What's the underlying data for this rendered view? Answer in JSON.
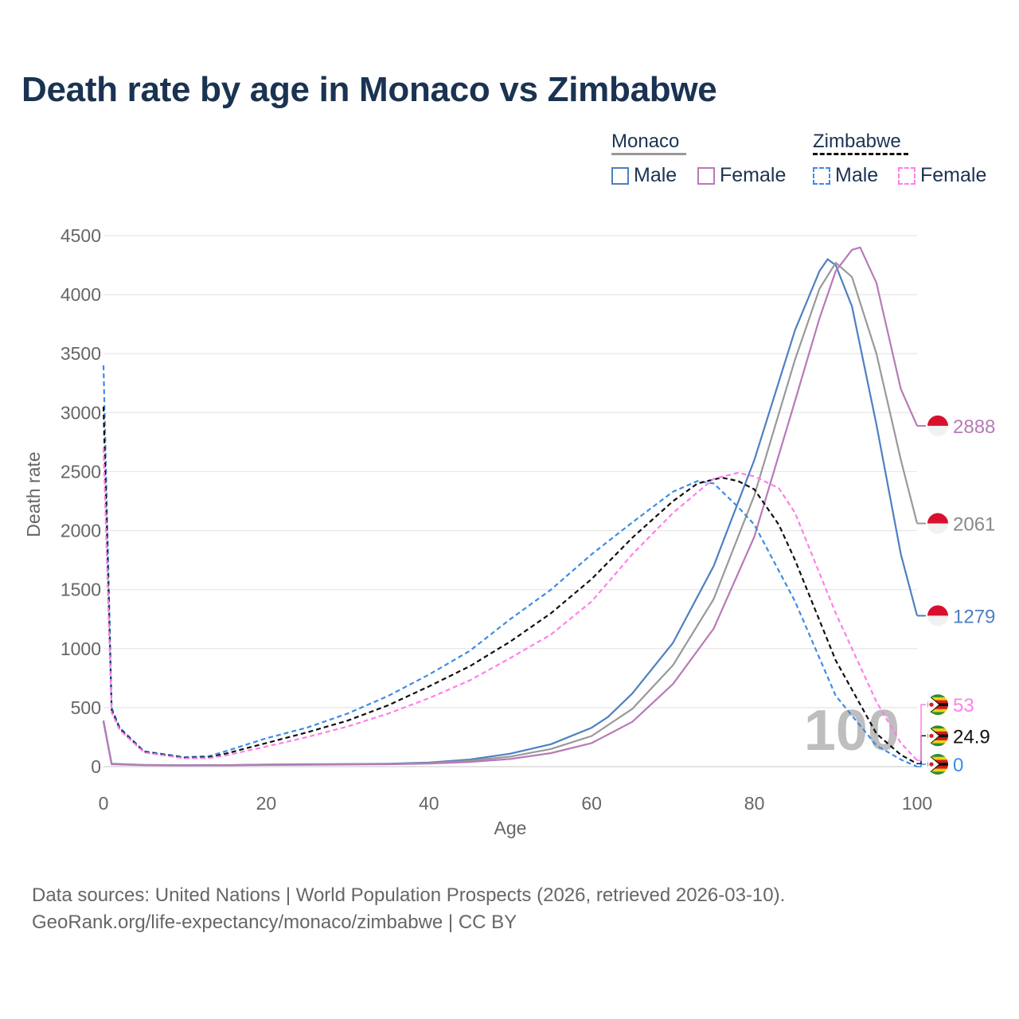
{
  "title": "Death rate by age in Monaco vs Zimbabwe",
  "legend": {
    "groups": [
      {
        "name": "Monaco",
        "line_color": "#999999",
        "line_style": "solid",
        "items": [
          {
            "label": "Male",
            "color": "#4e7fc2",
            "style": "solid"
          },
          {
            "label": "Female",
            "color": "#b77ab8",
            "style": "solid"
          }
        ]
      },
      {
        "name": "Zimbabwe",
        "line_color": "#111111",
        "line_style": "dashed",
        "items": [
          {
            "label": "Male",
            "color": "#3d8ce6",
            "style": "dashed"
          },
          {
            "label": "Female",
            "color": "#ff7fe9",
            "style": "dashed"
          }
        ]
      }
    ]
  },
  "watermark": "100",
  "footer": {
    "line1": "Data sources: United Nations | World Population Prospects (2026, retrieved 2026-03-10).",
    "line2": "GeoRank.org/life-expectancy/monaco/zimbabwe | CC BY"
  },
  "chart_data": {
    "type": "line",
    "title": "Death rate by age in Monaco vs Zimbabwe",
    "xlabel": "Age",
    "ylabel": "Death rate",
    "xlim": [
      0,
      100
    ],
    "ylim": [
      0,
      4500
    ],
    "xticks": [
      0,
      20,
      40,
      60,
      80,
      100
    ],
    "yticks": [
      0,
      500,
      1000,
      1500,
      2000,
      2500,
      3000,
      3500,
      4000,
      4500
    ],
    "grid": true,
    "series": [
      {
        "name": "Monaco Male",
        "color": "#4e7fc2",
        "dash": "solid",
        "end_label": "1279",
        "end_value": 1279,
        "flag": "monaco",
        "points": [
          [
            0,
            390
          ],
          [
            1,
            25
          ],
          [
            5,
            15
          ],
          [
            10,
            12
          ],
          [
            15,
            13
          ],
          [
            20,
            18
          ],
          [
            25,
            20
          ],
          [
            30,
            22
          ],
          [
            35,
            25
          ],
          [
            40,
            35
          ],
          [
            45,
            60
          ],
          [
            50,
            110
          ],
          [
            55,
            190
          ],
          [
            60,
            330
          ],
          [
            62,
            420
          ],
          [
            65,
            620
          ],
          [
            70,
            1050
          ],
          [
            75,
            1700
          ],
          [
            80,
            2600
          ],
          [
            85,
            3700
          ],
          [
            88,
            4200
          ],
          [
            89,
            4300
          ],
          [
            90,
            4250
          ],
          [
            92,
            3900
          ],
          [
            95,
            2900
          ],
          [
            98,
            1800
          ],
          [
            100,
            1279
          ]
        ]
      },
      {
        "name": "Monaco Both",
        "color": "#999999",
        "dash": "solid",
        "end_label": "2061",
        "end_value": 2061,
        "flag": "monaco",
        "points": [
          [
            0,
            385
          ],
          [
            1,
            22
          ],
          [
            5,
            14
          ],
          [
            10,
            11
          ],
          [
            15,
            12
          ],
          [
            20,
            16
          ],
          [
            25,
            18
          ],
          [
            30,
            20
          ],
          [
            35,
            22
          ],
          [
            40,
            30
          ],
          [
            45,
            50
          ],
          [
            50,
            85
          ],
          [
            55,
            150
          ],
          [
            60,
            260
          ],
          [
            65,
            490
          ],
          [
            70,
            860
          ],
          [
            75,
            1420
          ],
          [
            80,
            2300
          ],
          [
            85,
            3450
          ],
          [
            88,
            4050
          ],
          [
            90,
            4270
          ],
          [
            92,
            4150
          ],
          [
            95,
            3500
          ],
          [
            98,
            2600
          ],
          [
            100,
            2061
          ]
        ]
      },
      {
        "name": "Monaco Female",
        "color": "#b77ab8",
        "dash": "solid",
        "end_label": "2888",
        "end_value": 2888,
        "flag": "monaco",
        "points": [
          [
            0,
            380
          ],
          [
            1,
            20
          ],
          [
            5,
            13
          ],
          [
            10,
            10
          ],
          [
            15,
            11
          ],
          [
            20,
            14
          ],
          [
            25,
            16
          ],
          [
            30,
            18
          ],
          [
            35,
            20
          ],
          [
            40,
            26
          ],
          [
            45,
            40
          ],
          [
            50,
            65
          ],
          [
            55,
            115
          ],
          [
            60,
            200
          ],
          [
            65,
            380
          ],
          [
            70,
            700
          ],
          [
            75,
            1170
          ],
          [
            80,
            1950
          ],
          [
            85,
            3100
          ],
          [
            88,
            3800
          ],
          [
            90,
            4200
          ],
          [
            92,
            4380
          ],
          [
            93,
            4400
          ],
          [
            95,
            4100
          ],
          [
            98,
            3200
          ],
          [
            100,
            2888
          ]
        ]
      },
      {
        "name": "Zimbabwe Male",
        "color": "#3d8ce6",
        "dash": "dashed",
        "end_label": "0",
        "end_value": 0,
        "flag": "zimbabwe",
        "points": [
          [
            0,
            3400
          ],
          [
            1,
            500
          ],
          [
            2,
            330
          ],
          [
            5,
            130
          ],
          [
            10,
            80
          ],
          [
            13,
            90
          ],
          [
            15,
            130
          ],
          [
            20,
            240
          ],
          [
            25,
            330
          ],
          [
            30,
            450
          ],
          [
            35,
            600
          ],
          [
            40,
            780
          ],
          [
            45,
            980
          ],
          [
            50,
            1250
          ],
          [
            55,
            1500
          ],
          [
            60,
            1800
          ],
          [
            65,
            2070
          ],
          [
            70,
            2330
          ],
          [
            73,
            2420
          ],
          [
            75,
            2400
          ],
          [
            78,
            2200
          ],
          [
            80,
            2050
          ],
          [
            85,
            1400
          ],
          [
            90,
            600
          ],
          [
            95,
            180
          ],
          [
            98,
            60
          ],
          [
            100,
            0
          ]
        ]
      },
      {
        "name": "Zimbabwe Both",
        "color": "#111111",
        "dash": "dashed",
        "end_label": "24.9",
        "end_value": 24.9,
        "flag": "zimbabwe",
        "points": [
          [
            0,
            3050
          ],
          [
            1,
            480
          ],
          [
            2,
            320
          ],
          [
            5,
            125
          ],
          [
            10,
            75
          ],
          [
            13,
            80
          ],
          [
            15,
            110
          ],
          [
            20,
            200
          ],
          [
            25,
            290
          ],
          [
            30,
            390
          ],
          [
            35,
            520
          ],
          [
            40,
            680
          ],
          [
            45,
            850
          ],
          [
            50,
            1060
          ],
          [
            55,
            1300
          ],
          [
            60,
            1590
          ],
          [
            65,
            1940
          ],
          [
            70,
            2250
          ],
          [
            73,
            2400
          ],
          [
            76,
            2450
          ],
          [
            78,
            2420
          ],
          [
            80,
            2350
          ],
          [
            83,
            2050
          ],
          [
            85,
            1750
          ],
          [
            90,
            900
          ],
          [
            95,
            280
          ],
          [
            98,
            100
          ],
          [
            100,
            25
          ]
        ]
      },
      {
        "name": "Zimbabwe Female",
        "color": "#ff7fe9",
        "dash": "dashed",
        "end_label": "53",
        "end_value": 53,
        "flag": "zimbabwe",
        "points": [
          [
            0,
            2700
          ],
          [
            1,
            460
          ],
          [
            2,
            310
          ],
          [
            5,
            120
          ],
          [
            10,
            70
          ],
          [
            13,
            72
          ],
          [
            15,
            95
          ],
          [
            20,
            170
          ],
          [
            25,
            250
          ],
          [
            30,
            340
          ],
          [
            35,
            450
          ],
          [
            40,
            580
          ],
          [
            45,
            730
          ],
          [
            50,
            920
          ],
          [
            55,
            1120
          ],
          [
            60,
            1400
          ],
          [
            65,
            1800
          ],
          [
            70,
            2150
          ],
          [
            75,
            2440
          ],
          [
            78,
            2490
          ],
          [
            80,
            2460
          ],
          [
            83,
            2360
          ],
          [
            85,
            2150
          ],
          [
            90,
            1300
          ],
          [
            95,
            550
          ],
          [
            98,
            200
          ],
          [
            100,
            53
          ]
        ]
      }
    ]
  }
}
